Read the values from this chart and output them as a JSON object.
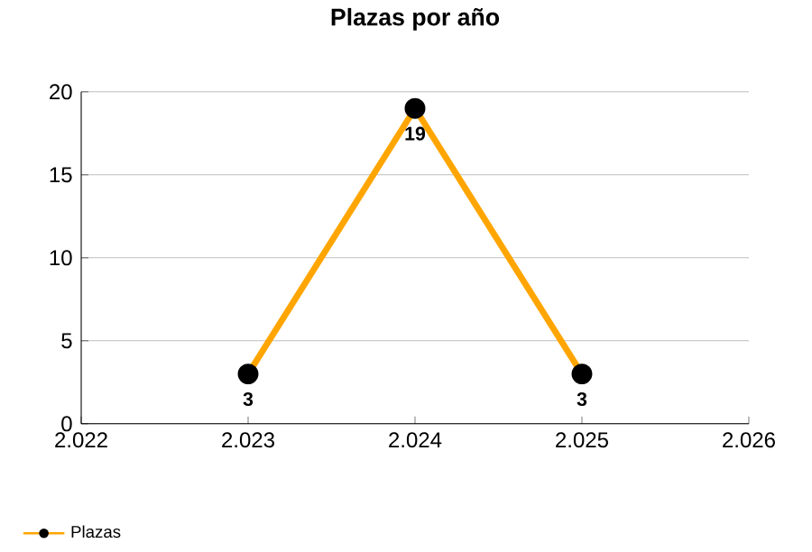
{
  "chart_data": {
    "type": "line",
    "title": "Plazas por año",
    "x": [
      2023,
      2024,
      2025
    ],
    "series": [
      {
        "name": "Plazas",
        "color": "#ffa500",
        "values": [
          3,
          19,
          3
        ]
      }
    ],
    "xlim": [
      2022,
      2026
    ],
    "xticks": [
      {
        "value": 2022,
        "label": "2.022"
      },
      {
        "value": 2023,
        "label": "2.023"
      },
      {
        "value": 2024,
        "label": "2.024"
      },
      {
        "value": 2025,
        "label": "2.025"
      },
      {
        "value": 2026,
        "label": "2.026"
      }
    ],
    "ylim": [
      0,
      20
    ],
    "yticks": [
      0,
      5,
      10,
      15,
      20
    ],
    "grid": "y",
    "legend": "bottom left",
    "marker": "circle",
    "line_style": "solid",
    "data_labels": true
  }
}
